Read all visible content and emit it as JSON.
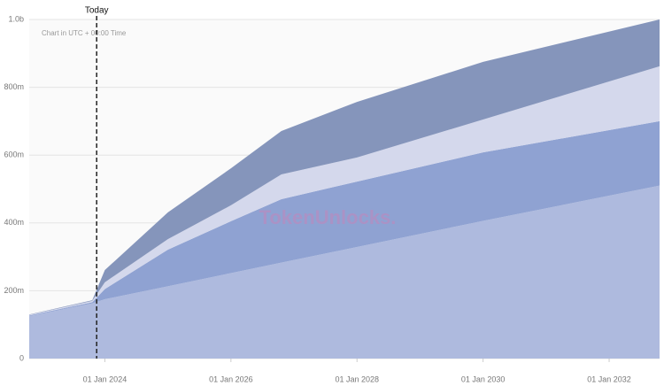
{
  "chart_data": {
    "type": "stacked-area",
    "note": "Chart in UTC + 00:00 Time",
    "watermark": "TokenUnlocks.",
    "today": {
      "x": 2023.87,
      "label": "Today"
    },
    "x": [
      2022.8,
      2023.8,
      2024,
      2025,
      2026,
      2026.8,
      2028,
      2030,
      2032.8
    ],
    "series": [
      {
        "color": "#aebade",
        "values": [
          125,
          163,
          175,
          213,
          252,
          283,
          329,
          406,
          510
        ]
      },
      {
        "color": "#8fa2d2",
        "values": [
          2,
          3,
          30,
          108,
          153,
          187,
          193,
          202,
          190
        ]
      },
      {
        "color": "#d4d8ec",
        "values": [
          2,
          4,
          20,
          31,
          47,
          73,
          71,
          97,
          162
        ]
      },
      {
        "color": "#8595bb",
        "values": [
          1,
          2,
          36,
          79,
          109,
          128,
          164,
          170,
          138
        ]
      }
    ],
    "xlim": [
      2022.8,
      2032.8
    ],
    "xticks": [
      {
        "value": 2024,
        "label": "01 Jan 2024"
      },
      {
        "value": 2026,
        "label": "01 Jan 2026"
      },
      {
        "value": 2028,
        "label": "01 Jan 2028"
      },
      {
        "value": 2030,
        "label": "01 Jan 2030"
      },
      {
        "value": 2032,
        "label": "01 Jan 2032"
      }
    ],
    "ylim": [
      0,
      1000
    ],
    "yticks": [
      0,
      {
        "value": 200,
        "label": "200m"
      },
      {
        "value": 400,
        "label": "400m"
      },
      {
        "value": 600,
        "label": "600m"
      },
      {
        "value": 800,
        "label": "800m"
      },
      {
        "value": 1000,
        "label": "1.0b"
      }
    ],
    "grid": true
  }
}
